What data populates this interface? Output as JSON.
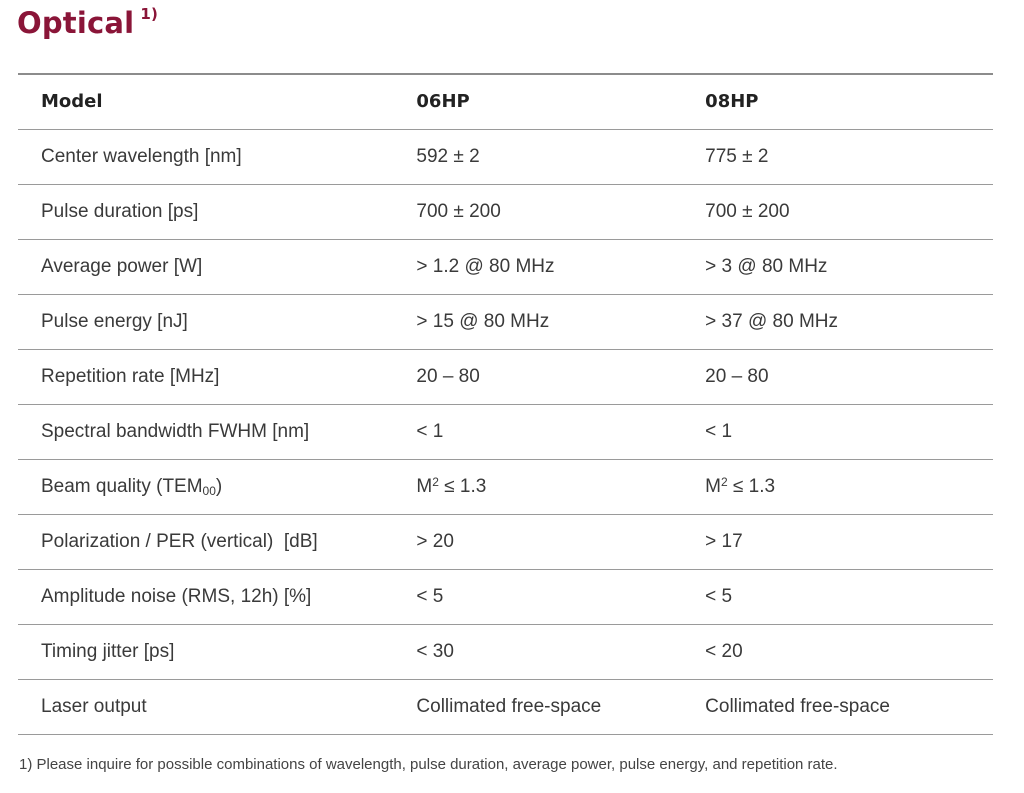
{
  "title": {
    "text": "Optical",
    "footnote_marker": "1)",
    "color": "#8a1538"
  },
  "table": {
    "headers": [
      "Model",
      "06HP",
      "08HP"
    ],
    "rows": [
      {
        "parameter": "Center wavelength [nm]",
        "model_06hp": "592 ± 2",
        "model_08hp": "775 ± 2"
      },
      {
        "parameter": "Pulse duration [ps]",
        "model_06hp": "700 ± 200",
        "model_08hp": "700 ± 200"
      },
      {
        "parameter": "Average power [W]",
        "model_06hp": "> 1.2 @ 80 MHz",
        "model_08hp": "> 3 @ 80 MHz"
      },
      {
        "parameter": "Pulse energy [nJ]",
        "model_06hp": "> 15 @ 80 MHz",
        "model_08hp": "> 37 @ 80 MHz"
      },
      {
        "parameter": "Repetition rate [MHz]",
        "model_06hp": "20 – 80",
        "model_08hp": "20 – 80"
      },
      {
        "parameter": "Spectral bandwidth FWHM [nm]",
        "model_06hp": "< 1",
        "model_08hp": "< 1"
      },
      {
        "parameter": "Beam quality (TEM",
        "parameter_subscript": "00",
        "parameter_suffix": ")",
        "model_06hp": "M",
        "model_06hp_superscript": "2",
        "model_06hp_suffix": " ≤ 1.3",
        "model_08hp": "M",
        "model_08hp_superscript": "2",
        "model_08hp_suffix": " ≤ 1.3"
      },
      {
        "parameter": "Polarization / PER (vertical)  [dB]",
        "model_06hp": "> 20",
        "model_08hp": "> 17"
      },
      {
        "parameter": "Amplitude noise (RMS, 12h) [%]",
        "model_06hp": "< 5",
        "model_08hp": "< 5"
      },
      {
        "parameter": "Timing jitter [ps]",
        "model_06hp": "< 30",
        "model_08hp": "< 20"
      },
      {
        "parameter": "Laser output",
        "model_06hp": "Collimated free-space",
        "model_08hp": "Collimated free-space"
      }
    ]
  },
  "footnote": {
    "text": "1) Please inquire for possible combinations of wavelength, pulse duration, average power, pulse energy, and repetition rate."
  }
}
